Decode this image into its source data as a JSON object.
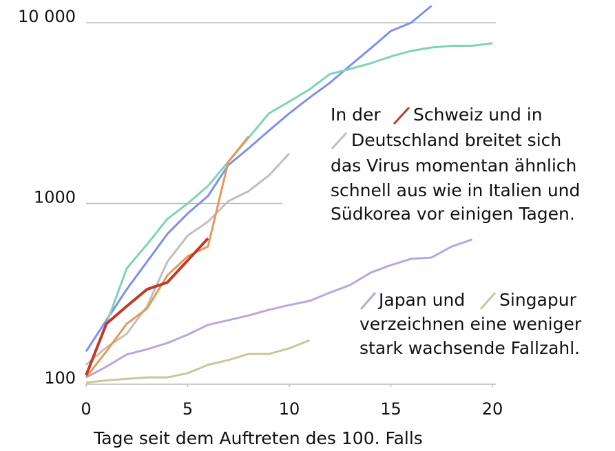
{
  "chart_data": {
    "type": "line",
    "x_label": "Tage seit dem Auftreten des 100. Falls",
    "log_scale": true,
    "grid": true,
    "xlim": [
      0,
      20
    ],
    "xticks": [
      0,
      5,
      10,
      15,
      20
    ],
    "ylim": [
      100,
      10000
    ],
    "yticks": [
      100,
      1000,
      {
        "value": 10000,
        "label": "10 000"
      }
    ],
    "series": [
      {
        "color": "#7f8ff0",
        "x": [
          0,
          1,
          2,
          3,
          4,
          5,
          6,
          7,
          8,
          9,
          10,
          11,
          12,
          13,
          14,
          15,
          16,
          17
        ],
        "values": [
          152,
          226,
          335,
          476,
          678,
          880,
          1100,
          1630,
          2020,
          2530,
          3150,
          3850,
          4650,
          5800,
          7200,
          9000,
          10000,
          12400
        ]
      },
      {
        "color": "#7fd3b4",
        "x": [
          0,
          1,
          2,
          3,
          4,
          5,
          6,
          7,
          8,
          9,
          10,
          11,
          12,
          13,
          14,
          15,
          16,
          17,
          18,
          19,
          20
        ],
        "values": [
          112,
          216,
          437,
          594,
          821,
          1000,
          1250,
          1700,
          2310,
          3150,
          3660,
          4280,
          5200,
          5550,
          5960,
          6500,
          6980,
          7290,
          7450,
          7450,
          7700
        ]
      },
      {
        "color": "#bfbfbf",
        "x": [
          0,
          1,
          2,
          3,
          4,
          5,
          6,
          7,
          8,
          9,
          10
        ],
        "values": [
          128,
          160,
          190,
          270,
          476,
          664,
          793,
          1030,
          1170,
          1430,
          1890
        ]
      },
      {
        "color": "#b9a5e0",
        "x": [
          0,
          1,
          2,
          3,
          4,
          5,
          6,
          7,
          8,
          9,
          10,
          11,
          12,
          13,
          14,
          15,
          16,
          17,
          18,
          19
        ],
        "values": [
          109,
          125,
          146,
          156,
          169,
          188,
          213,
          226,
          240,
          258,
          274,
          289,
          321,
          354,
          414,
          456,
          494,
          502,
          578,
          632
        ]
      },
      {
        "color": "#c9c79a",
        "x": [
          0,
          1,
          2,
          3,
          4,
          5,
          6,
          7,
          8,
          9,
          10,
          11
        ],
        "values": [
          102,
          105,
          107,
          109,
          109,
          115,
          128,
          136,
          147,
          147,
          158,
          175
        ]
      },
      {
        "color": "#e39a55",
        "x": [
          0,
          1,
          2,
          3,
          4,
          5,
          6,
          7,
          8
        ],
        "values": [
          109,
          152,
          216,
          262,
          400,
          510,
          578,
          1700,
          2350
        ]
      },
      {
        "color": "#c0392b",
        "x": [
          0,
          1,
          2,
          3,
          4,
          5,
          6
        ],
        "values": [
          112,
          216,
          270,
          335,
          366,
          484,
          641
        ]
      }
    ],
    "annotations": [
      {
        "lines": [
          "In der",
          "Schweiz und in",
          "Deutschland breitet sich",
          "das Virus momentan ähnlich",
          "schnell aus wie in Italien und",
          "Südkorea vor einigen Tagen."
        ]
      },
      {
        "lines": [
          "Japan und",
          "Singapur",
          "verzeichnen eine weniger",
          "stark wachsende Fallzahl."
        ]
      }
    ]
  }
}
